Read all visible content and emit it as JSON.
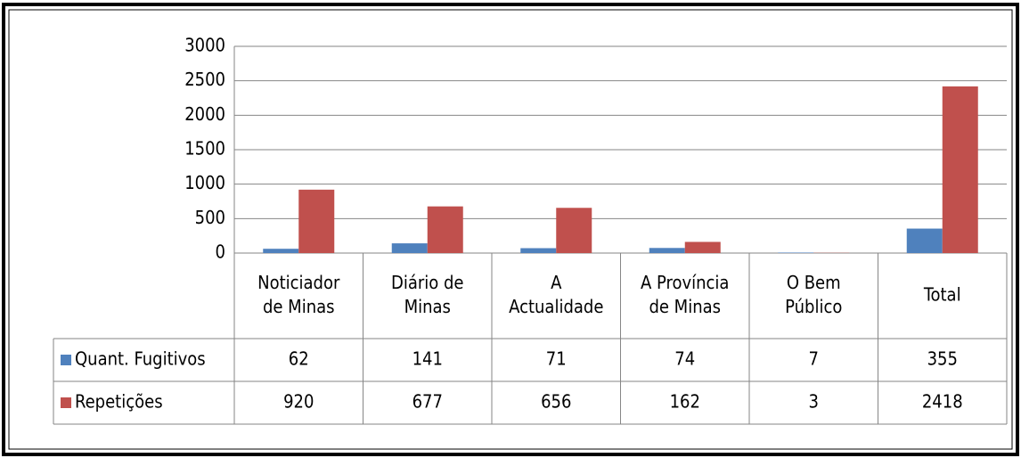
{
  "chart_data": {
    "type": "bar",
    "categories": [
      [
        "Noticiador",
        "de Minas"
      ],
      [
        "Diário de",
        "Minas"
      ],
      [
        "A",
        "Actualidade"
      ],
      [
        "A Província",
        "de Minas"
      ],
      [
        "O Bem",
        "Público"
      ],
      [
        "Total"
      ]
    ],
    "series": [
      {
        "name": "Quant. Fugitivos",
        "color": "#4f81bd",
        "values": [
          62,
          141,
          71,
          74,
          7,
          355
        ]
      },
      {
        "name": "Repetições",
        "color": "#c0504d",
        "values": [
          920,
          677,
          656,
          162,
          3,
          2418
        ]
      }
    ],
    "ylim": [
      0,
      3000
    ],
    "yticks": [
      0,
      500,
      1000,
      1500,
      2000,
      2500,
      3000
    ],
    "grid": true
  }
}
